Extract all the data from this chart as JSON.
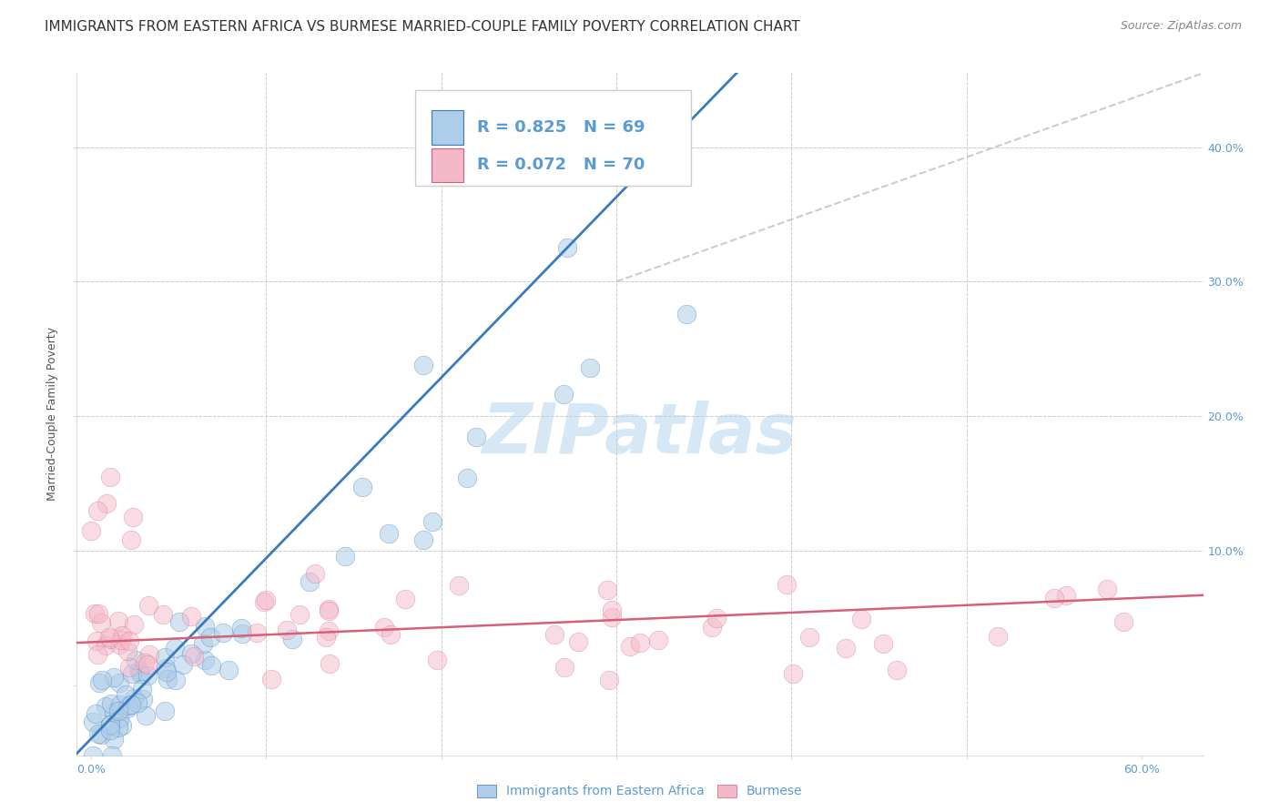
{
  "title": "IMMIGRANTS FROM EASTERN AFRICA VS BURMESE MARRIED-COUPLE FAMILY POVERTY CORRELATION CHART",
  "source": "Source: ZipAtlas.com",
  "ylabel": "Married-Couple Family Poverty",
  "legend_label1": "Immigrants from Eastern Africa",
  "legend_label2": "Burmese",
  "R1": 0.825,
  "N1": 69,
  "R2": 0.072,
  "N2": 70,
  "xlim": [
    -0.008,
    0.635
  ],
  "ylim": [
    -0.052,
    0.455
  ],
  "xticks": [
    0.0,
    0.1,
    0.2,
    0.3,
    0.4,
    0.5,
    0.6
  ],
  "yticks": [
    0.0,
    0.1,
    0.2,
    0.3,
    0.4
  ],
  "color_blue": "#aecde8",
  "color_pink": "#f5b8cb",
  "line_color_blue": "#3a7abf",
  "line_color_pink": "#d4607a",
  "diagonal_color": "#cccccc",
  "legend_text_color": "#5b9bd5",
  "background_color": "#ffffff",
  "watermark": "ZIPatlas",
  "watermark_color": "#d6e8f5",
  "seed": 42,
  "title_fontsize": 11,
  "source_fontsize": 9,
  "axis_fontsize": 9,
  "legend_fontsize": 13
}
